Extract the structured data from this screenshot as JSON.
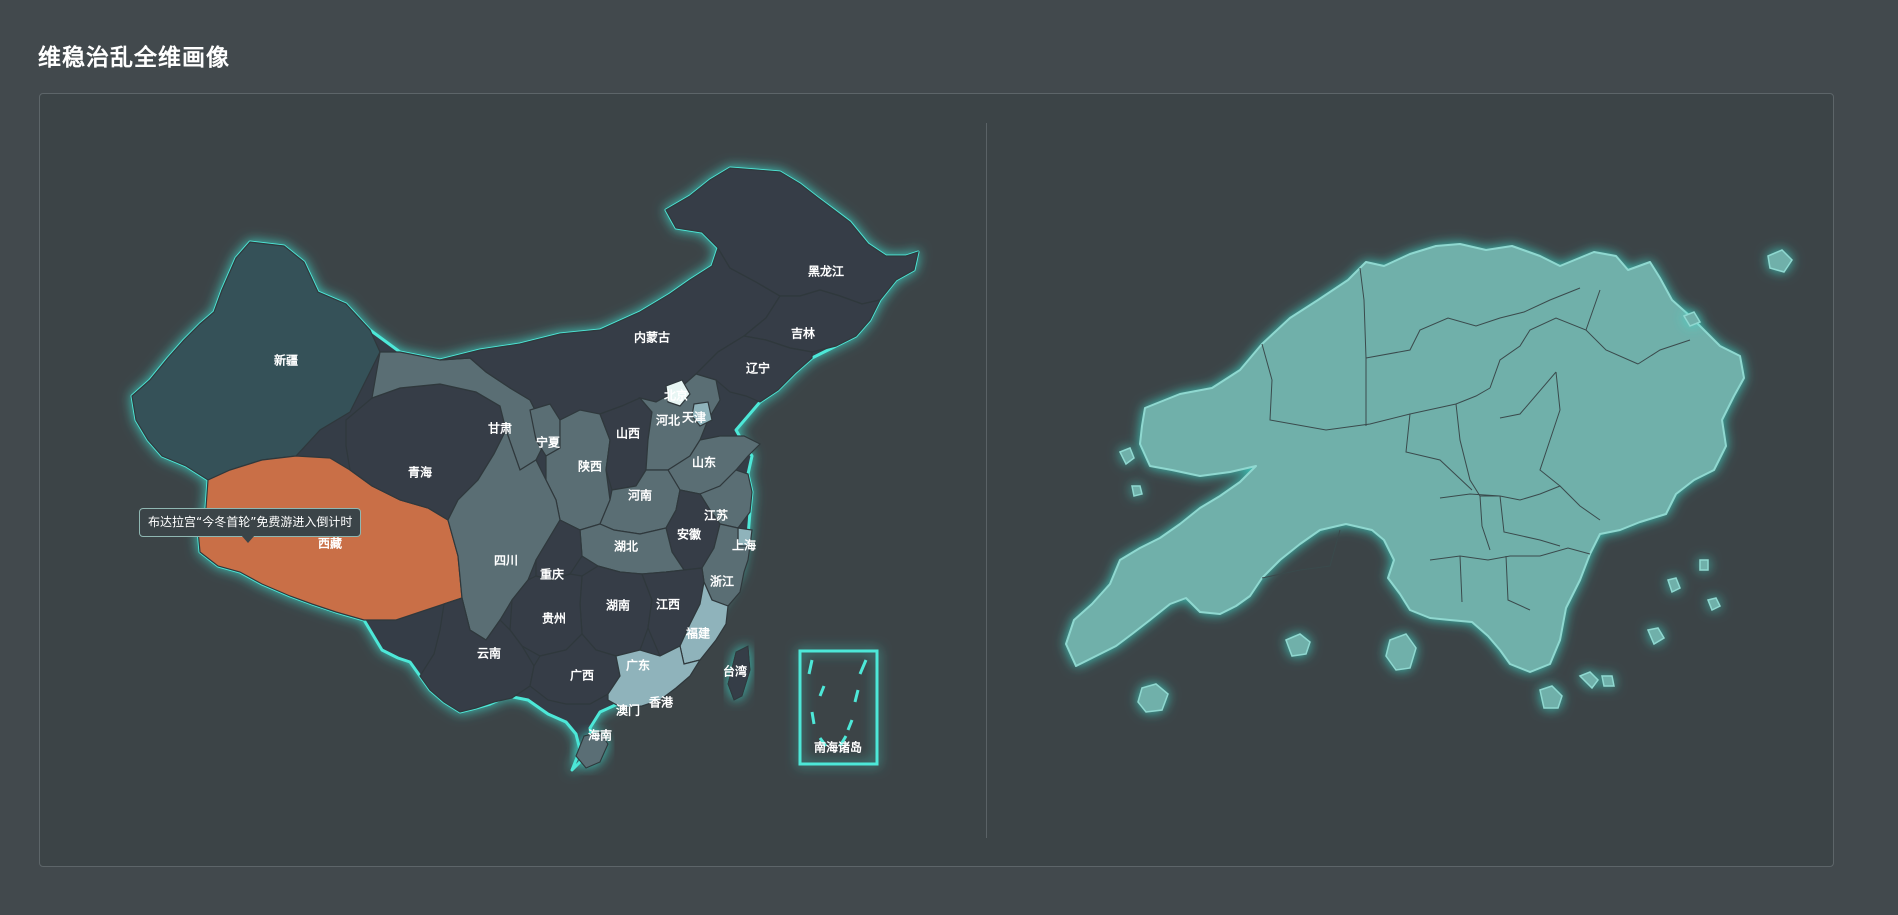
{
  "header": {
    "title": "维稳治乱全维画像"
  },
  "colors": {
    "page_background": "#42494d",
    "panel_background": "#3c4447",
    "glow": "#3ee0d0",
    "highlight": "#c96f47",
    "hongkong_fill": "#6fb0aa",
    "province_dark": "#363d47",
    "province_mid": "#5a6e74",
    "province_light": "#8fb3bb",
    "province_teal_dark": "#355158"
  },
  "china_map": {
    "tooltip": "布达拉宫“今冬首轮”免费游进入倒计时",
    "highlighted_region": "西藏",
    "south_china_sea_label": "南海诸岛",
    "provinces": [
      {
        "name": "新疆"
      },
      {
        "name": "西藏"
      },
      {
        "name": "青海"
      },
      {
        "name": "甘肃"
      },
      {
        "name": "内蒙古"
      },
      {
        "name": "黑龙江"
      },
      {
        "name": "吉林"
      },
      {
        "name": "辽宁"
      },
      {
        "name": "宁夏"
      },
      {
        "name": "陕西"
      },
      {
        "name": "山西"
      },
      {
        "name": "河北"
      },
      {
        "name": "北京"
      },
      {
        "name": "天津"
      },
      {
        "name": "山东"
      },
      {
        "name": "河南"
      },
      {
        "name": "江苏"
      },
      {
        "name": "安徽"
      },
      {
        "name": "上海"
      },
      {
        "name": "湖北"
      },
      {
        "name": "四川"
      },
      {
        "name": "重庆"
      },
      {
        "name": "浙江"
      },
      {
        "name": "湖南"
      },
      {
        "name": "江西"
      },
      {
        "name": "贵州"
      },
      {
        "name": "福建"
      },
      {
        "name": "云南"
      },
      {
        "name": "广西"
      },
      {
        "name": "广东"
      },
      {
        "name": "台湾"
      },
      {
        "name": "香港"
      },
      {
        "name": "澳门"
      },
      {
        "name": "海南"
      }
    ]
  },
  "hongkong_map": {
    "districts": 18
  }
}
